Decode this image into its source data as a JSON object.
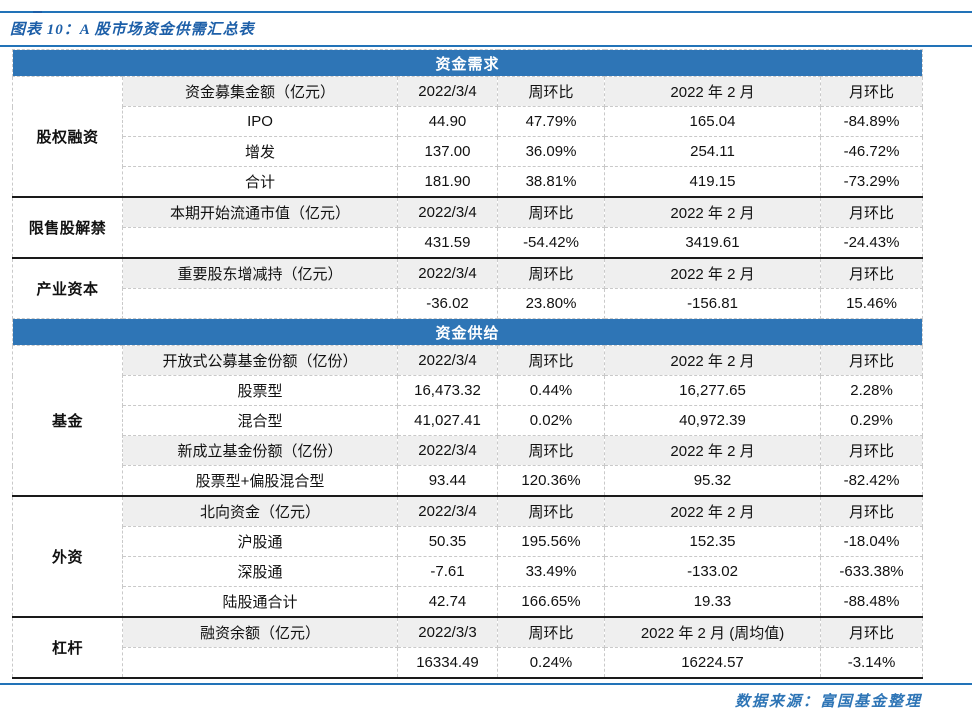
{
  "title": "图表 10：A 股市场资金供需汇总表",
  "source": "数据来源：富国基金整理",
  "colors": {
    "accent_blue": "#2E75B6",
    "line_blue": "#2273B8",
    "title_blue": "#1D5FA8",
    "up_red": "#E00000",
    "down_green": "#00B161",
    "subhead_bg": "#EFEFEF",
    "border_gray": "#C9C9C9",
    "separator": "#1A1A1A",
    "text_dark": "#111111"
  },
  "table": {
    "groups": [
      {
        "header": "资金需求",
        "sections": [
          {
            "label": "股权融资",
            "separator_top": false,
            "rows": [
              {
                "kind": "subhead",
                "cells": [
                  "资金募集金额（亿元）",
                  "2022/3/4",
                  "周环比",
                  "2022 年 2 月",
                  "月环比"
                ]
              },
              {
                "kind": "data",
                "cells": [
                  "IPO",
                  "44.90",
                  {
                    "text": "47.79%",
                    "color": "red"
                  },
                  "165.04",
                  {
                    "text": "-84.89%",
                    "color": "green"
                  }
                ]
              },
              {
                "kind": "data",
                "cells": [
                  "增发",
                  "137.00",
                  {
                    "text": "36.09%",
                    "color": "red"
                  },
                  "254.11",
                  {
                    "text": "-46.72%",
                    "color": "green"
                  }
                ]
              },
              {
                "kind": "data",
                "cells": [
                  "合计",
                  "181.90",
                  {
                    "text": "38.81%",
                    "color": "red"
                  },
                  "419.15",
                  {
                    "text": "-73.29%",
                    "color": "green"
                  }
                ]
              }
            ]
          },
          {
            "label": "限售股解禁",
            "separator_top": true,
            "rows": [
              {
                "kind": "subhead",
                "cells": [
                  "本期开始流通市值（亿元）",
                  "2022/3/4",
                  "周环比",
                  "2022 年 2 月",
                  "月环比"
                ]
              },
              {
                "kind": "data",
                "cells": [
                  "",
                  "431.59",
                  {
                    "text": "-54.42%",
                    "color": "green"
                  },
                  "3419.61",
                  {
                    "text": "-24.43%",
                    "color": "green"
                  }
                ]
              }
            ]
          },
          {
            "label": "产业资本",
            "separator_top": true,
            "rows": [
              {
                "kind": "subhead",
                "cells": [
                  "重要股东增减持（亿元）",
                  "2022/3/4",
                  "周环比",
                  "2022 年 2 月",
                  "月环比"
                ]
              },
              {
                "kind": "data",
                "cells": [
                  "",
                  "-36.02",
                  {
                    "text": "23.80%",
                    "color": "red",
                    "underline": true
                  },
                  "-156.81",
                  {
                    "text": "15.46%",
                    "color": "red"
                  }
                ]
              }
            ]
          }
        ]
      },
      {
        "header": "资金供给",
        "sections": [
          {
            "label": "基金",
            "separator_top": false,
            "rows": [
              {
                "kind": "subhead",
                "cells": [
                  "开放式公募基金份额（亿份）",
                  "2022/3/4",
                  "周环比",
                  "2022 年 2 月",
                  "月环比"
                ]
              },
              {
                "kind": "data",
                "cells": [
                  "股票型",
                  "16,473.32",
                  {
                    "text": "0.44%",
                    "color": "red"
                  },
                  "16,277.65",
                  {
                    "text": "2.28%",
                    "color": "red"
                  }
                ]
              },
              {
                "kind": "data",
                "cells": [
                  "混合型",
                  "41,027.41",
                  {
                    "text": "0.02%",
                    "color": "red"
                  },
                  "40,972.39",
                  {
                    "text": "0.29%",
                    "color": "red"
                  }
                ]
              },
              {
                "kind": "subhead",
                "cells": [
                  "新成立基金份额（亿份）",
                  "2022/3/4",
                  "周环比",
                  "2022 年 2 月",
                  "月环比"
                ]
              },
              {
                "kind": "data",
                "cells": [
                  "股票型+偏股混合型",
                  "93.44",
                  {
                    "text": "120.36%",
                    "color": "red"
                  },
                  "95.32",
                  {
                    "text": "-82.42%",
                    "color": "green"
                  }
                ]
              }
            ]
          },
          {
            "label": "外资",
            "separator_top": true,
            "rows": [
              {
                "kind": "subhead",
                "cells": [
                  "北向资金（亿元）",
                  "2022/3/4",
                  "周环比",
                  "2022 年 2 月",
                  "月环比"
                ]
              },
              {
                "kind": "data",
                "cells": [
                  "沪股通",
                  "50.35",
                  {
                    "text": "195.56%",
                    "color": "red"
                  },
                  "152.35",
                  {
                    "text": "-18.04%",
                    "color": "green"
                  }
                ]
              },
              {
                "kind": "data",
                "cells": [
                  "深股通",
                  "-7.61",
                  {
                    "text": "33.49%",
                    "color": "red"
                  },
                  "-133.02",
                  {
                    "text": "-633.38%",
                    "color": "green"
                  }
                ]
              },
              {
                "kind": "data",
                "cells": [
                  "陆股通合计",
                  "42.74",
                  {
                    "text": "166.65%",
                    "color": "red"
                  },
                  "19.33",
                  {
                    "text": "-88.48%",
                    "color": "green"
                  }
                ]
              }
            ]
          },
          {
            "label": "杠杆",
            "separator_top": true,
            "rows": [
              {
                "kind": "subhead",
                "cells": [
                  "融资余额（亿元）",
                  "2022/3/3",
                  "周环比",
                  "2022 年 2 月 (周均值)",
                  "月环比"
                ]
              },
              {
                "kind": "data",
                "cells": [
                  "",
                  "16334.49",
                  {
                    "text": "0.24%",
                    "color": "red"
                  },
                  "16224.57",
                  {
                    "text": "-3.14%",
                    "color": "green"
                  }
                ]
              }
            ]
          }
        ]
      }
    ]
  }
}
